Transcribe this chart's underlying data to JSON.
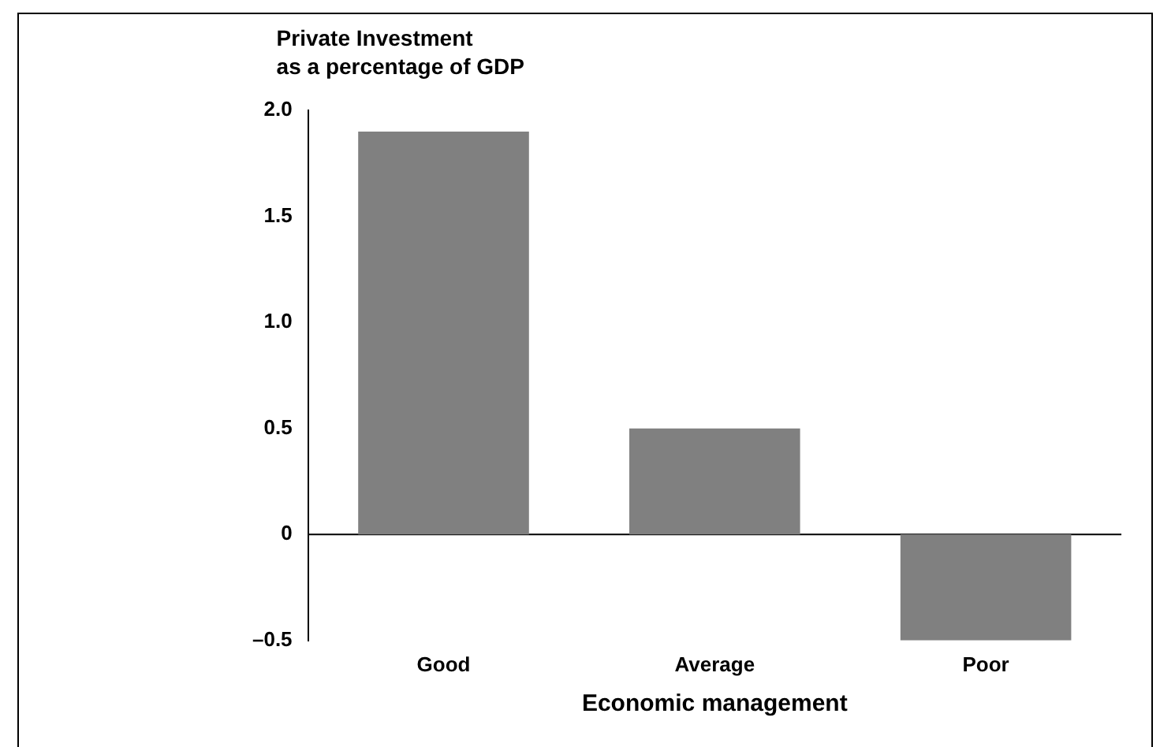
{
  "chart_data": {
    "type": "bar",
    "title": "Private Investment\nas a percentage of GDP",
    "xlabel": "Economic management",
    "categories": [
      "Good",
      "Average",
      "Poor"
    ],
    "values": [
      1.9,
      0.5,
      -0.5
    ],
    "color": "#808080",
    "ylim": [
      -0.5,
      2.0
    ],
    "yticks": [
      {
        "value": -0.5,
        "label": "–0.5"
      },
      0,
      0.5,
      {
        "value": 1.0,
        "label": "1.0"
      },
      1.5,
      {
        "value": 2.0,
        "label": "2.0"
      }
    ],
    "legend": false
  }
}
